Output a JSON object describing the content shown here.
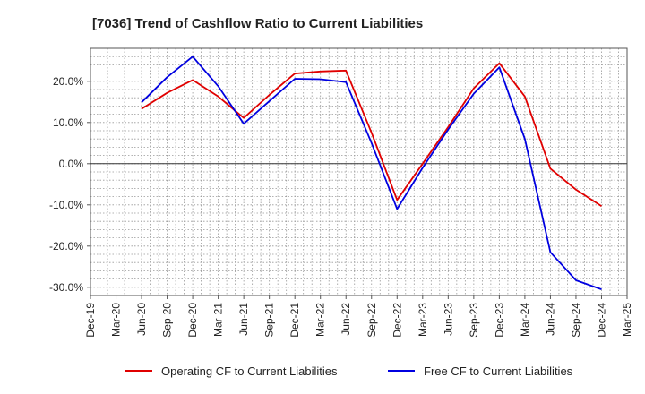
{
  "chart_data": {
    "type": "line",
    "title": "[7036]  Trend of Cashflow Ratio to Current Liabilities",
    "xlabel": "",
    "ylabel": "",
    "x_ticks": [
      "Dec-19",
      "Mar-20",
      "Jun-20",
      "Sep-20",
      "Dec-20",
      "Mar-21",
      "Jun-21",
      "Sep-21",
      "Dec-21",
      "Mar-22",
      "Jun-22",
      "Sep-22",
      "Dec-22",
      "Mar-23",
      "Jun-23",
      "Sep-23",
      "Dec-23",
      "Mar-24",
      "Jun-24",
      "Sep-24",
      "Dec-24",
      "Mar-25"
    ],
    "y_ticks": [
      {
        "value": 20,
        "label": "20.0%"
      },
      {
        "value": 10,
        "label": "10.0%"
      },
      {
        "value": 0,
        "label": "0.0%"
      },
      {
        "value": -10,
        "label": "-10.0%"
      },
      {
        "value": -20,
        "label": "-20.0%"
      },
      {
        "value": -30,
        "label": "-30.0%"
      }
    ],
    "ylim": [
      -32,
      28
    ],
    "grid": true,
    "legend_position": "bottom",
    "series": [
      {
        "name": "Operating CF to Current Liabilities",
        "color": "#e00000",
        "points": [
          [
            "Jun-20",
            13.3
          ],
          [
            "Sep-20",
            17.2
          ],
          [
            "Dec-20",
            20.3
          ],
          [
            "Mar-21",
            16.3
          ],
          [
            "Jun-21",
            11.1
          ],
          [
            "Sep-21",
            16.7
          ],
          [
            "Dec-21",
            21.9
          ],
          [
            "Mar-22",
            22.4
          ],
          [
            "Jun-22",
            22.6
          ],
          [
            "Sep-22",
            7.5
          ],
          [
            "Dec-22",
            -8.8
          ],
          [
            "Mar-23",
            0.0
          ],
          [
            "Jun-23",
            8.9
          ],
          [
            "Sep-23",
            18.3
          ],
          [
            "Dec-23",
            24.4
          ],
          [
            "Mar-24",
            16.3
          ],
          [
            "Jun-24",
            -1.2
          ],
          [
            "Sep-24",
            -6.3
          ],
          [
            "Dec-24",
            -10.3
          ]
        ]
      },
      {
        "name": "Free CF to Current Liabilities",
        "color": "#0000e0",
        "points": [
          [
            "Jun-20",
            14.9
          ],
          [
            "Sep-20",
            21.0
          ],
          [
            "Dec-20",
            26.0
          ],
          [
            "Mar-21",
            18.8
          ],
          [
            "Jun-21",
            9.7
          ],
          [
            "Sep-21",
            15.2
          ],
          [
            "Dec-21",
            20.6
          ],
          [
            "Mar-22",
            20.5
          ],
          [
            "Jun-22",
            19.8
          ],
          [
            "Sep-22",
            5.0
          ],
          [
            "Dec-22",
            -11.0
          ],
          [
            "Mar-23",
            -1.0
          ],
          [
            "Jun-23",
            8.3
          ],
          [
            "Sep-23",
            17.0
          ],
          [
            "Dec-23",
            23.4
          ],
          [
            "Mar-24",
            6.0
          ],
          [
            "Jun-24",
            -21.5
          ],
          [
            "Sep-24",
            -28.3
          ],
          [
            "Dec-24",
            -30.5
          ]
        ]
      }
    ]
  }
}
